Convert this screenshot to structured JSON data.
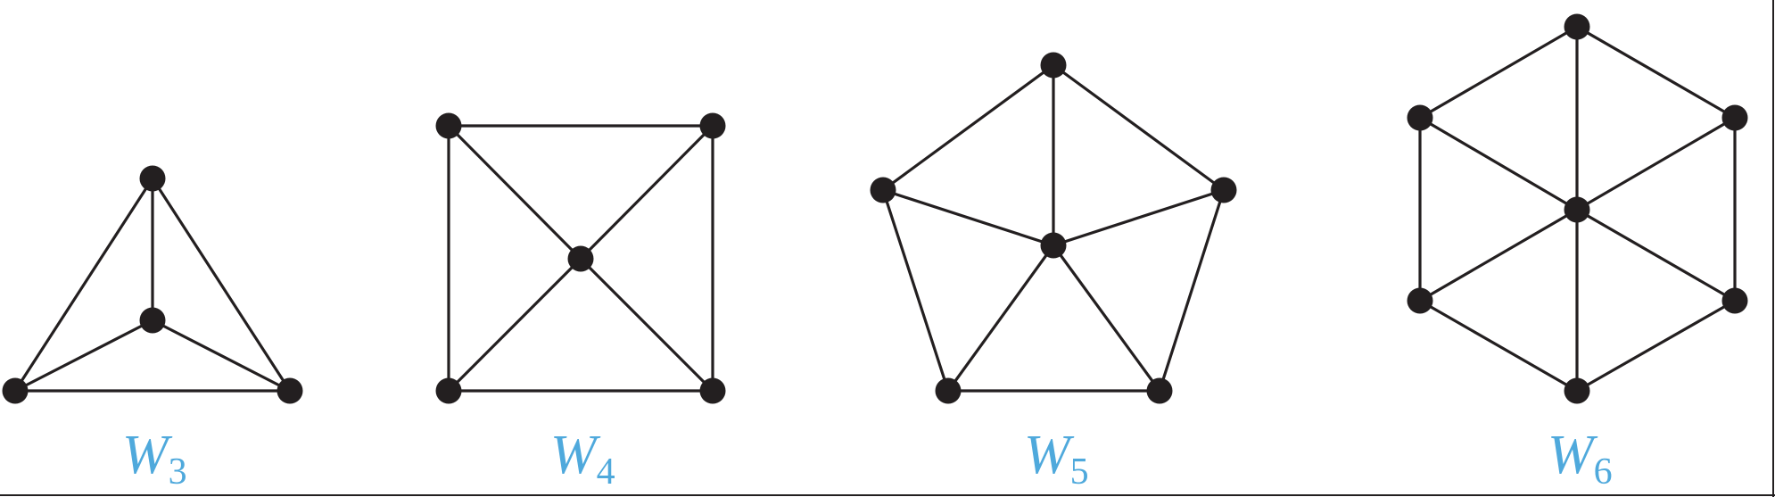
{
  "wheels": [
    {
      "id": "w3",
      "label": "W",
      "subscript": "3",
      "rim_vertices": 3,
      "total_vertices": 4
    },
    {
      "id": "w4",
      "label": "W",
      "subscript": "4",
      "rim_vertices": 4,
      "total_vertices": 5
    },
    {
      "id": "w5",
      "label": "W",
      "subscript": "5",
      "rim_vertices": 5,
      "total_vertices": 6
    },
    {
      "id": "w6",
      "label": "W",
      "subscript": "6",
      "rim_vertices": 6,
      "total_vertices": 7
    }
  ],
  "colors": {
    "graph": "#231f20",
    "label": "#4fa9dc",
    "background": "#ffffff"
  }
}
